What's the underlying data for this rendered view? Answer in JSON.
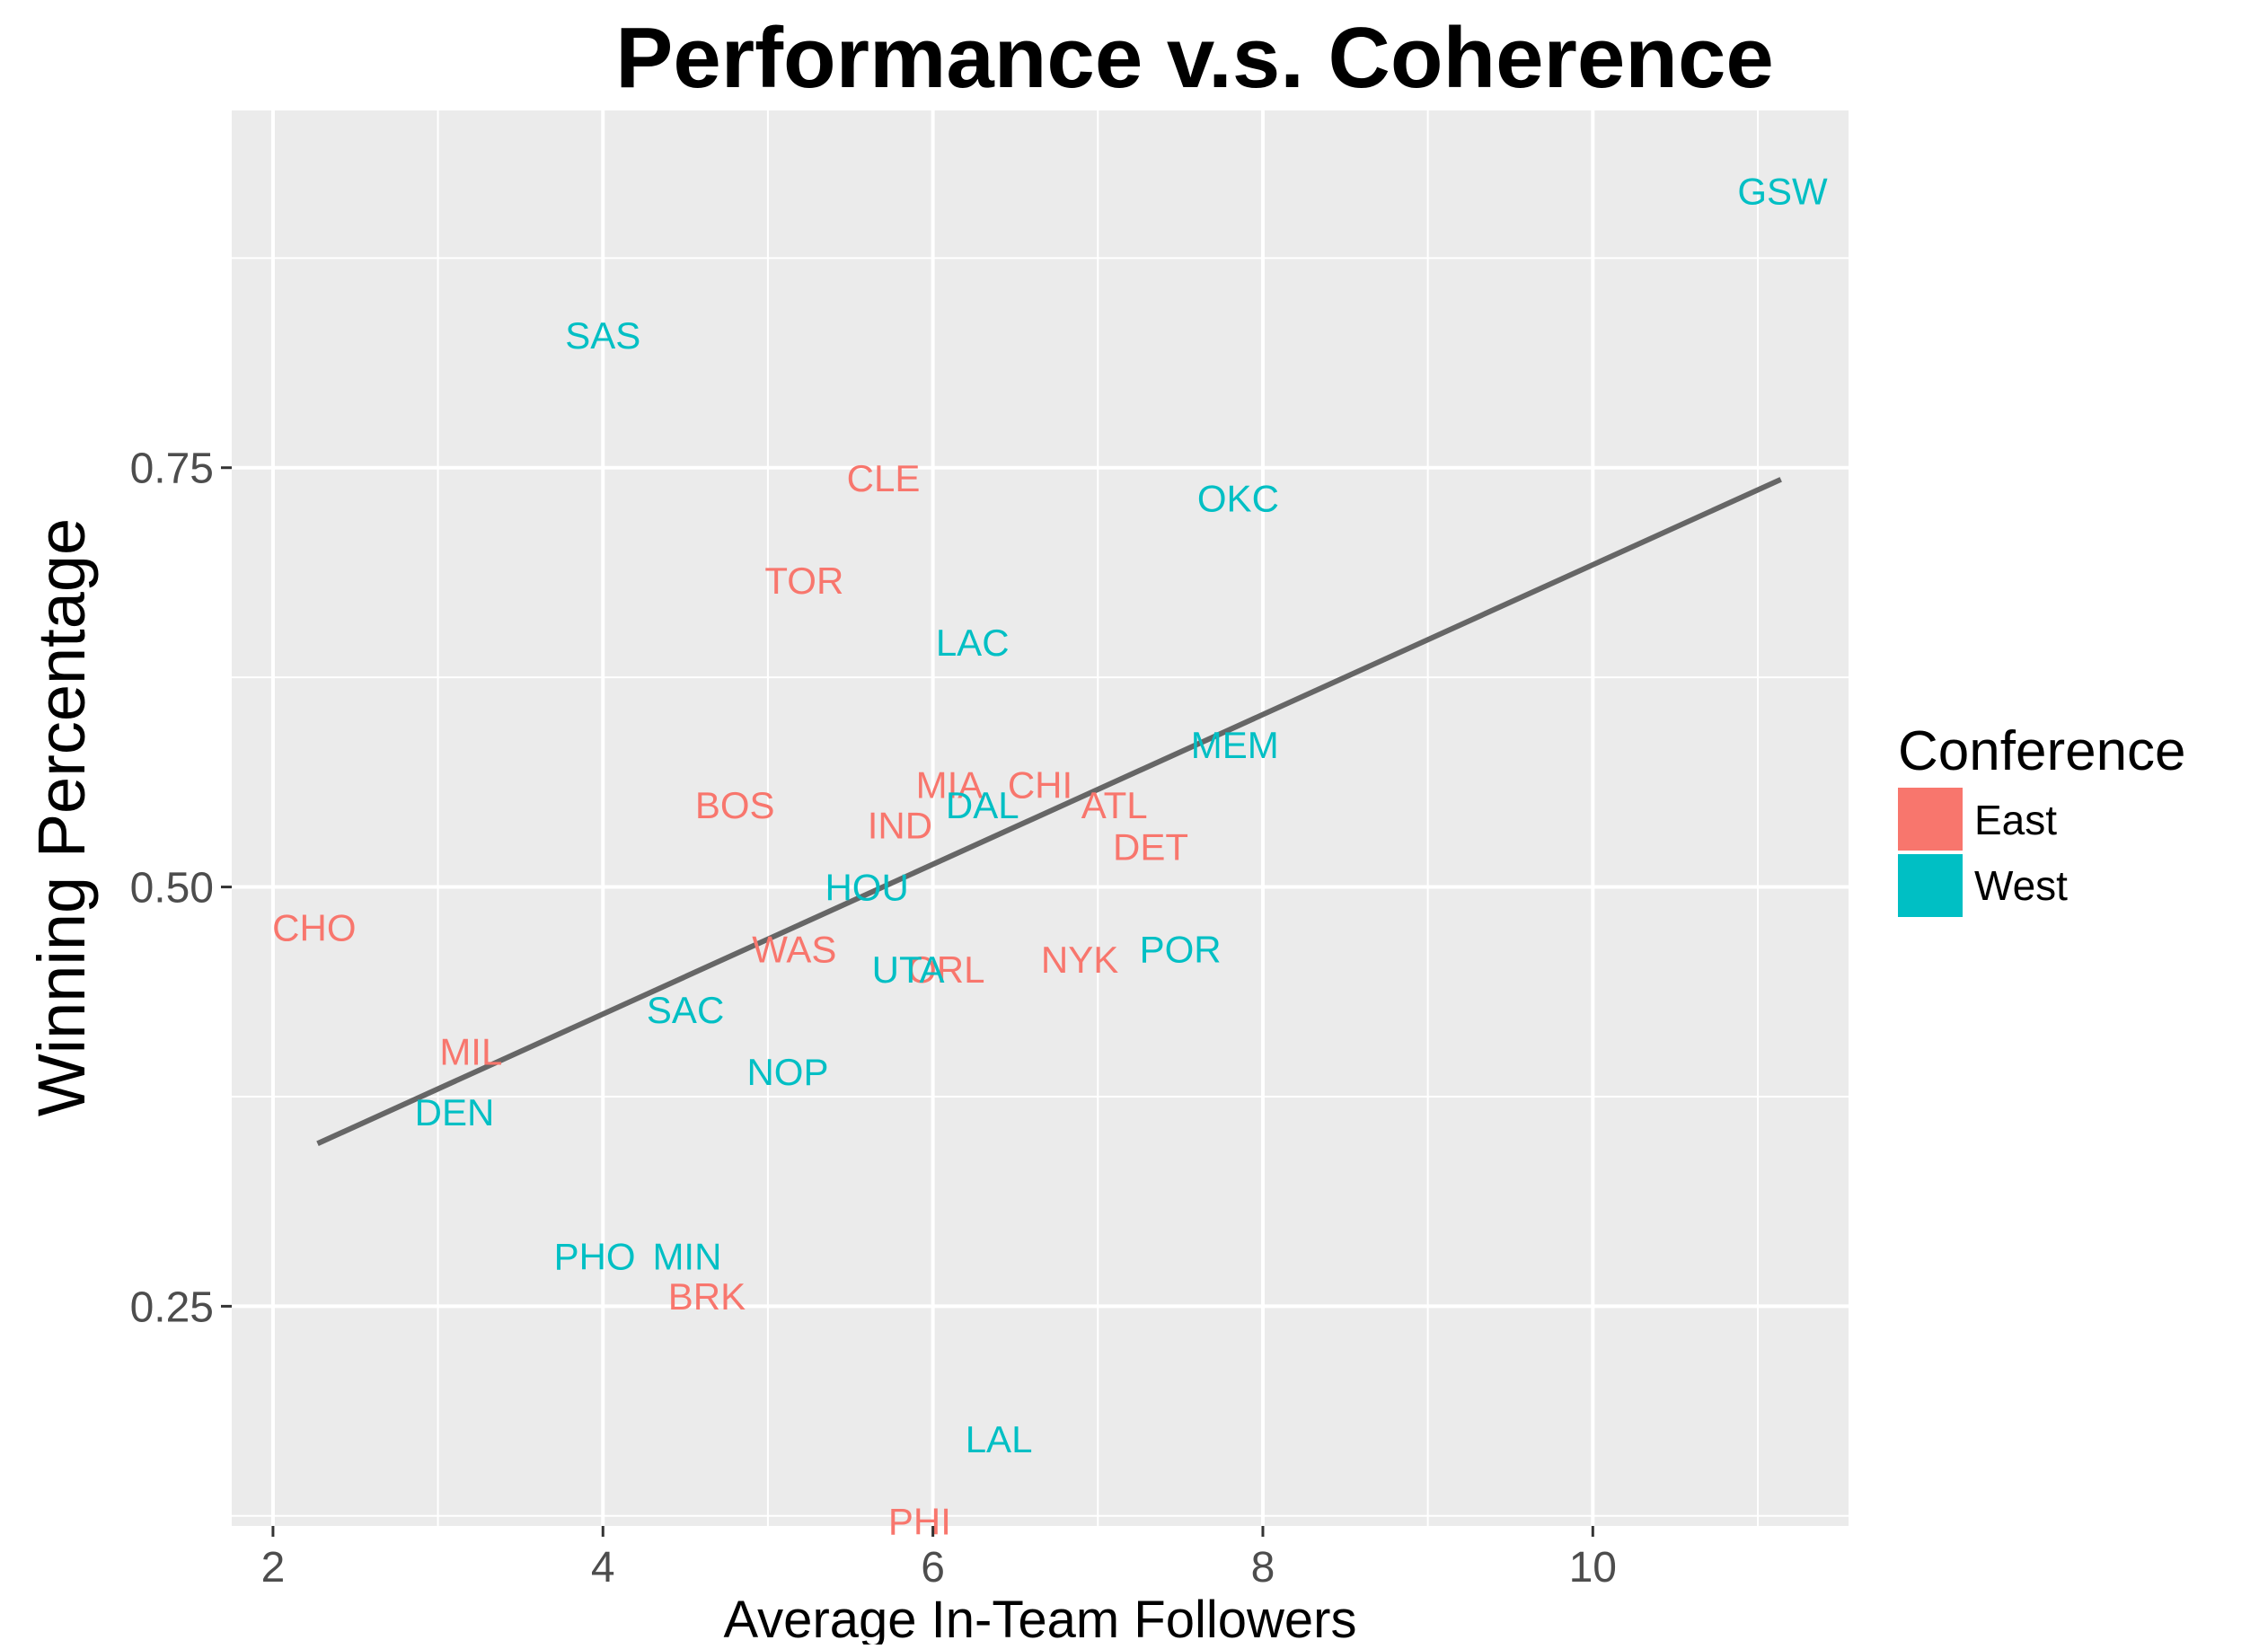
{
  "chart_data": {
    "type": "scatter",
    "title": "Performance v.s. Coherence",
    "xlabel": "Average In-Team Followers",
    "ylabel": "Winning Percentage",
    "xlim": [
      1.75,
      11.55
    ],
    "ylim": [
      0.119,
      0.963
    ],
    "x_ticks": [
      2,
      4,
      6,
      8,
      10
    ],
    "x_tick_labels": [
      "2",
      "4",
      "6",
      "8",
      "10"
    ],
    "y_ticks": [
      0.25,
      0.5,
      0.75
    ],
    "y_tick_labels": [
      "0.25",
      "0.50",
      "0.75"
    ],
    "grid": true,
    "background": "#ebebeb",
    "legend": {
      "title": "Conference",
      "placement": "right",
      "entries": [
        {
          "name": "East",
          "color": "#f8766d"
        },
        {
          "name": "West",
          "color": "#00bfc4"
        }
      ]
    },
    "series": [
      {
        "name": "East",
        "color": "#f8766d",
        "points": [
          {
            "label": "CHO",
            "x": 2.25,
            "y": 0.476
          },
          {
            "label": "MIL",
            "x": 3.2,
            "y": 0.402
          },
          {
            "label": "BRK",
            "x": 4.63,
            "y": 0.256
          },
          {
            "label": "BOS",
            "x": 4.8,
            "y": 0.549
          },
          {
            "label": "TOR",
            "x": 5.22,
            "y": 0.683
          },
          {
            "label": "WAS",
            "x": 5.16,
            "y": 0.463
          },
          {
            "label": "CLE",
            "x": 5.7,
            "y": 0.744
          },
          {
            "label": "IND",
            "x": 5.8,
            "y": 0.537
          },
          {
            "label": "MIA",
            "x": 6.1,
            "y": 0.561
          },
          {
            "label": "ORL",
            "x": 6.08,
            "y": 0.451
          },
          {
            "label": "PHI",
            "x": 5.92,
            "y": 0.122
          },
          {
            "label": "CHI",
            "x": 6.65,
            "y": 0.561
          },
          {
            "label": "ATL",
            "x": 7.1,
            "y": 0.549
          },
          {
            "label": "NYK",
            "x": 6.89,
            "y": 0.457
          },
          {
            "label": "DET",
            "x": 7.32,
            "y": 0.524
          }
        ]
      },
      {
        "name": "West",
        "color": "#00bfc4",
        "points": [
          {
            "label": "GSW",
            "x": 11.15,
            "y": 0.915
          },
          {
            "label": "SAS",
            "x": 4.0,
            "y": 0.829
          },
          {
            "label": "OKC",
            "x": 7.85,
            "y": 0.732
          },
          {
            "label": "LAC",
            "x": 6.24,
            "y": 0.646
          },
          {
            "label": "MEM",
            "x": 7.83,
            "y": 0.585
          },
          {
            "label": "DAL",
            "x": 6.3,
            "y": 0.549
          },
          {
            "label": "HOU",
            "x": 5.6,
            "y": 0.5
          },
          {
            "label": "UTA",
            "x": 5.85,
            "y": 0.451
          },
          {
            "label": "POR",
            "x": 7.5,
            "y": 0.463
          },
          {
            "label": "SAC",
            "x": 4.5,
            "y": 0.427
          },
          {
            "label": "NOP",
            "x": 5.12,
            "y": 0.39
          },
          {
            "label": "DEN",
            "x": 3.1,
            "y": 0.366
          },
          {
            "label": "PHO",
            "x": 3.95,
            "y": 0.28
          },
          {
            "label": "MIN",
            "x": 4.51,
            "y": 0.28
          },
          {
            "label": "LAL",
            "x": 6.4,
            "y": 0.171
          }
        ]
      }
    ],
    "trend_line": {
      "color": "#666666",
      "points": [
        {
          "x": 2.27,
          "y": 0.347
        },
        {
          "x": 11.14,
          "y": 0.743
        }
      ]
    }
  }
}
